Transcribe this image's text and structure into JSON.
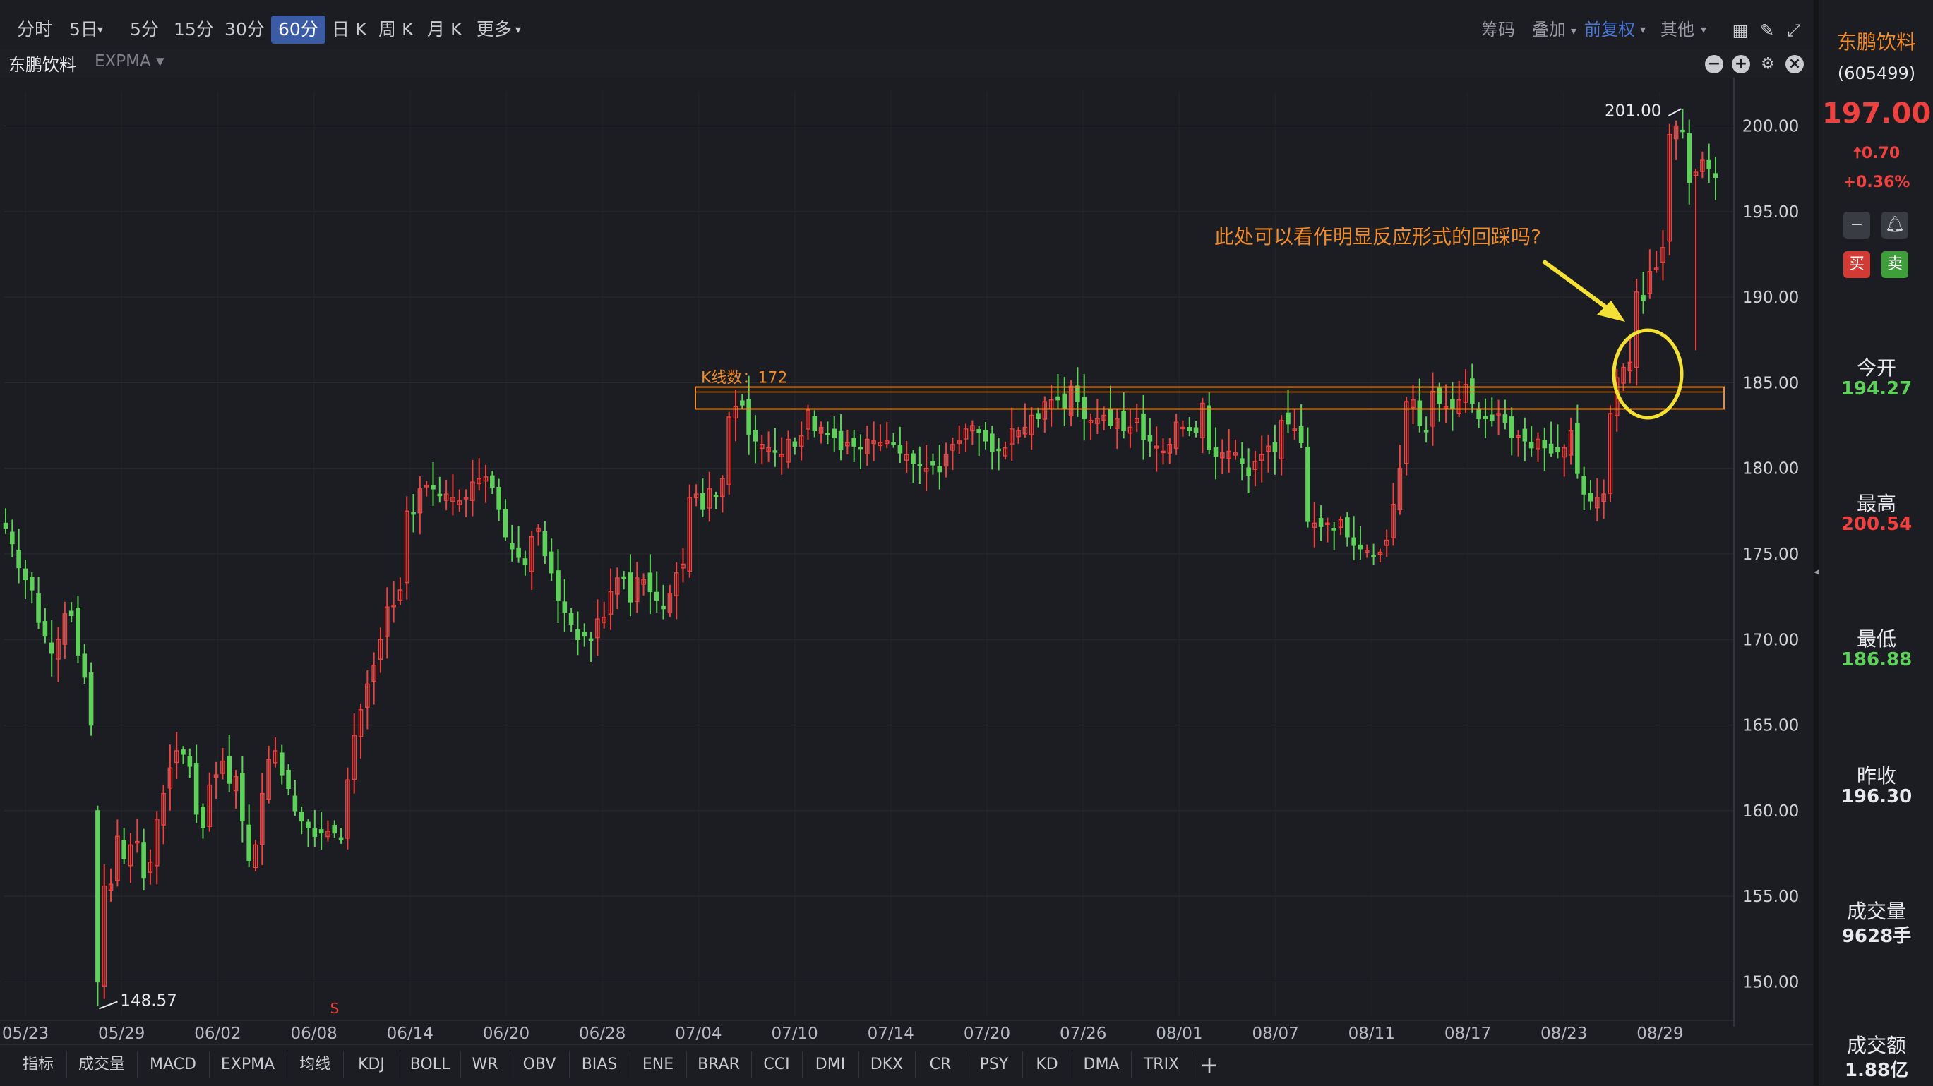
{
  "toolbar": {
    "timeframes": [
      "分时",
      "5日",
      "5分",
      "15分",
      "30分",
      "60分",
      "日 K",
      "周 K",
      "月 K",
      "更多"
    ],
    "active_timeframe": "60分",
    "right_tools": {
      "chips": "筹码",
      "overlay": "叠加",
      "adjust": "前复权",
      "other": "其他"
    }
  },
  "subheader": {
    "stock": "东鹏饮料",
    "indicator": "EXPMA"
  },
  "bottom_tabs": [
    "指标",
    "成交量",
    "MACD",
    "EXPMA",
    "均线",
    "KDJ",
    "BOLL",
    "WR",
    "OBV",
    "BIAS",
    "ENE",
    "BRAR",
    "CCI",
    "DMI",
    "DKX",
    "CR",
    "PSY",
    "KD",
    "DMA",
    "TRIX",
    "+"
  ],
  "sidebar": {
    "name": "东鹏饮料",
    "code": "(605499)",
    "price": "197.00",
    "change": "0.70",
    "change_arrow": "🠅",
    "change_pct": "+0.36%",
    "buy": "买",
    "sell": "卖",
    "stats": [
      {
        "label": "今开",
        "value": "194.27",
        "color": "#5ed15a"
      },
      {
        "label": "最高",
        "value": "200.54",
        "color": "#f0413f"
      },
      {
        "label": "最低",
        "value": "186.88",
        "color": "#5ed15a"
      },
      {
        "label": "昨收",
        "value": "196.30",
        "color": "#e8e9ec"
      },
      {
        "label": "成交量",
        "value": "9628手",
        "color": "#e8e9ec"
      },
      {
        "label": "成交额",
        "value": "1.88亿",
        "color": "#e8e9ec"
      }
    ]
  },
  "chart_data": {
    "type": "candlestick",
    "ylim": [
      148,
      202
    ],
    "y_ticks": [
      "200.00",
      "195.00",
      "190.00",
      "185.00",
      "180.00",
      "175.00",
      "170.00",
      "165.00",
      "160.00",
      "155.00",
      "150.00"
    ],
    "x_ticks": [
      "05/23",
      "05/29",
      "06/02",
      "06/08",
      "06/14",
      "06/20",
      "06/28",
      "07/04",
      "07/10",
      "07/14",
      "07/20",
      "07/26",
      "08/01",
      "08/07",
      "08/11",
      "08/17",
      "08/23",
      "08/29"
    ],
    "high_label": "201.00",
    "low_label": "148.57",
    "signal_mark": "S",
    "box_label": "K线数：172",
    "box_range": [
      183.8,
      184.5
    ],
    "annotation": "此处可以看作明显反应形式的回踩吗?",
    "colors": {
      "up": "#f0413f",
      "down": "#5ed15a",
      "annotation": "#f08c2c",
      "highlight": "#f5e135"
    },
    "closes": [
      176.5,
      175.6,
      174.2,
      173.5,
      172.9,
      171.0,
      170.2,
      169.2,
      170.0,
      171.5,
      171.4,
      169.1,
      167.8,
      165.0,
      150.0,
      155.6,
      155.7,
      158.5,
      157.2,
      158.0,
      158.2,
      156.1,
      157.0,
      159.5,
      161.0,
      162.5,
      163.5,
      163.3,
      162.6,
      159.8,
      159.0,
      161.5,
      162.1,
      162.9,
      161.6,
      162.0,
      159.4,
      157.1,
      158.0,
      161.0,
      163.0,
      163.5,
      162.1,
      161.3,
      160.0,
      159.4,
      159.0,
      158.5,
      158.7,
      158.8,
      158.7,
      158.3,
      161.8,
      164.4,
      165.9,
      167.4,
      168.5,
      170.0,
      171.9,
      172.0,
      172.9,
      177.5,
      177.4,
      178.8,
      179.0,
      178.8,
      178.4,
      178.5,
      178.3,
      178.1,
      178.3,
      179.2,
      179.4,
      179.5,
      178.9,
      177.6,
      176.0,
      175.3,
      174.8,
      174.4,
      176.0,
      176.5,
      174.9,
      173.9,
      172.3,
      171.6,
      170.9,
      170.0,
      170.2,
      170.0,
      171.2,
      171.3,
      172.8,
      173.6,
      173.6,
      172.2,
      173.6,
      173.5,
      172.8,
      172.3,
      171.8,
      172.7,
      173.9,
      174.4,
      178.3,
      178.5,
      177.6,
      178.8,
      178.4,
      179.4,
      183.0,
      183.6,
      183.7,
      182.0,
      181.6,
      181.4,
      181.2,
      181.0,
      180.8,
      181.7,
      181.3,
      181.9,
      183.4,
      182.2,
      182.4,
      182.0,
      181.8,
      181.1,
      181.5,
      181.3,
      181.2,
      181.7,
      181.6,
      181.5,
      181.6,
      181.4,
      180.9,
      180.8,
      180.3,
      180.2,
      180.0,
      180.2,
      179.8,
      180.8,
      181.4,
      181.6,
      182.3,
      182.5,
      182.1,
      181.6,
      181.0,
      181.1,
      181.2,
      182.3,
      182.2,
      182.4,
      183.1,
      182.9,
      183.9,
      184.0,
      184.0,
      183.5,
      184.8,
      183.9,
      182.9,
      182.8,
      182.9,
      183.1,
      182.5,
      182.9,
      182.2,
      182.4,
      182.9,
      181.7,
      181.6,
      181.3,
      181.0,
      181.4,
      182.7,
      182.4,
      182.2,
      182.1,
      183.8,
      181.1,
      180.7,
      180.9,
      181.0,
      180.9,
      180.3,
      179.6,
      180.4,
      180.8,
      181.3,
      181.0,
      182.8,
      182.6,
      182.3,
      181.5,
      176.9,
      176.8,
      176.6,
      176.8,
      176.4,
      177.0,
      176.0,
      175.5,
      175.3,
      175.2,
      174.9,
      175.1,
      175.8,
      177.9,
      180.0,
      183.9,
      184.0,
      182.5,
      182.2,
      184.5,
      183.8,
      183.6,
      183.5,
      184.0,
      184.9,
      183.8,
      182.9,
      182.9,
      182.8,
      183.2,
      182.7,
      181.8,
      181.9,
      181.6,
      181.2,
      181.7,
      181.2,
      180.9,
      181.0,
      181.2,
      182.2,
      179.7,
      178.5,
      178.1,
      178.3,
      178.5,
      183.2,
      185.3,
      185.9,
      186.2,
      190.3,
      189.8,
      191.5,
      191.7,
      192.9,
      199.5,
      200.0,
      199.7,
      196.7,
      197.3,
      198.0,
      197.5,
      197.0
    ]
  }
}
